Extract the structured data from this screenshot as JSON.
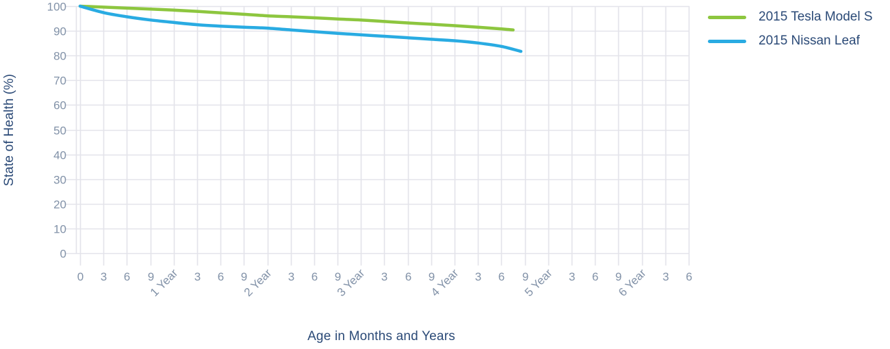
{
  "chart_data": {
    "type": "line",
    "title": "",
    "xlabel": "Age in Months and Years",
    "ylabel": "State of Health (%)",
    "x_unit": "months",
    "xlim_months": [
      0,
      78
    ],
    "ylim": [
      0,
      100
    ],
    "ytick_values": [
      0,
      10,
      20,
      30,
      40,
      50,
      60,
      70,
      80,
      90,
      100
    ],
    "xtick_step_months": 3,
    "xtick_labels": [
      "0",
      "3",
      "6",
      "9",
      "1 Year",
      "3",
      "6",
      "9",
      "2 Year",
      "3",
      "6",
      "9",
      "3 Year",
      "3",
      "6",
      "9",
      "4 Year",
      "3",
      "6",
      "9",
      "5 Year",
      "3",
      "6",
      "9",
      "6 Year",
      "3",
      "6"
    ],
    "grid": true,
    "legend_position": "top-right",
    "series": [
      {
        "name": "2015 Tesla Model S",
        "color": "#8dc63f",
        "points": [
          [
            0,
            100
          ],
          [
            3,
            99.6
          ],
          [
            6,
            99.2
          ],
          [
            9,
            98.8
          ],
          [
            12,
            98.4
          ],
          [
            15,
            97.9
          ],
          [
            18,
            97.3
          ],
          [
            21,
            96.7
          ],
          [
            24,
            96.1
          ],
          [
            27,
            95.7
          ],
          [
            30,
            95.3
          ],
          [
            33,
            94.8
          ],
          [
            36,
            94.4
          ],
          [
            39,
            93.8
          ],
          [
            42,
            93.2
          ],
          [
            45,
            92.7
          ],
          [
            48,
            92.1
          ],
          [
            51,
            91.5
          ],
          [
            54,
            90.8
          ],
          [
            55.5,
            90.4
          ]
        ]
      },
      {
        "name": "2015 Nissan Leaf",
        "color": "#29abe2",
        "points": [
          [
            0,
            100
          ],
          [
            3,
            97.4
          ],
          [
            6,
            95.7
          ],
          [
            9,
            94.4
          ],
          [
            12,
            93.4
          ],
          [
            15,
            92.5
          ],
          [
            18,
            91.9
          ],
          [
            21,
            91.5
          ],
          [
            24,
            91.1
          ],
          [
            27,
            90.4
          ],
          [
            30,
            89.7
          ],
          [
            33,
            89.0
          ],
          [
            36,
            88.4
          ],
          [
            39,
            87.8
          ],
          [
            42,
            87.2
          ],
          [
            45,
            86.6
          ],
          [
            48,
            86.0
          ],
          [
            51,
            85.1
          ],
          [
            54,
            83.7
          ],
          [
            56.5,
            81.7
          ]
        ]
      }
    ]
  },
  "colors": {
    "axis_text": "#8292a8",
    "title_text": "#2b4a77",
    "gridline": "#e3e3ea",
    "tesla_green": "#8dc63f",
    "leaf_blue": "#29abe2",
    "background": "#ffffff"
  }
}
